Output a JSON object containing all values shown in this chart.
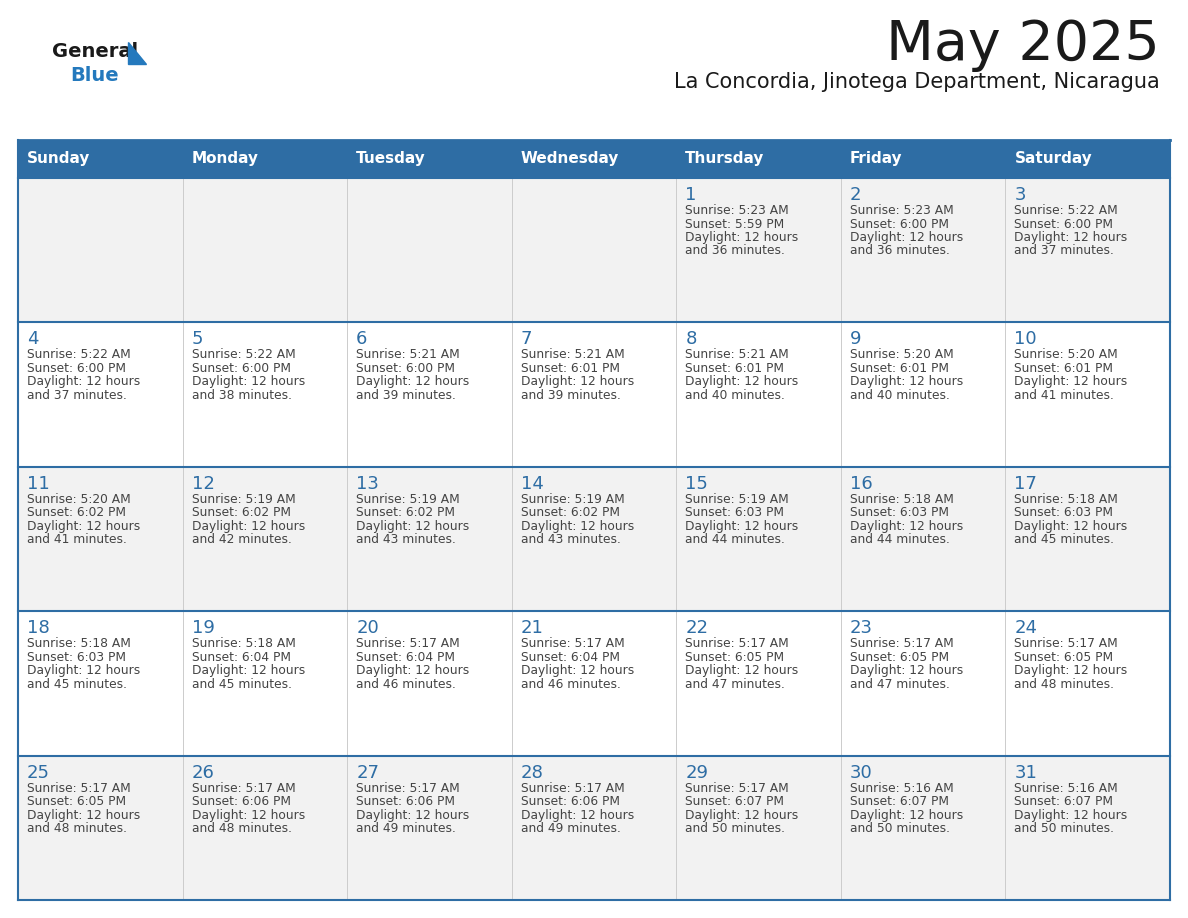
{
  "title": "May 2025",
  "subtitle": "La Concordia, Jinotega Department, Nicaragua",
  "days_of_week": [
    "Sunday",
    "Monday",
    "Tuesday",
    "Wednesday",
    "Thursday",
    "Friday",
    "Saturday"
  ],
  "header_bg": "#2E6DA4",
  "header_text": "#FFFFFF",
  "row_bg_light": "#F2F2F2",
  "row_bg_white": "#FFFFFF",
  "day_number_color": "#2E6DA4",
  "text_color": "#444444",
  "border_color": "#2E6DA4",
  "col_line_color": "#CCCCCC",
  "calendar_data": [
    [
      null,
      null,
      null,
      null,
      {
        "day": 1,
        "sunrise": "5:23 AM",
        "sunset": "5:59 PM",
        "daylight": "12 hours and 36 minutes."
      },
      {
        "day": 2,
        "sunrise": "5:23 AM",
        "sunset": "6:00 PM",
        "daylight": "12 hours and 36 minutes."
      },
      {
        "day": 3,
        "sunrise": "5:22 AM",
        "sunset": "6:00 PM",
        "daylight": "12 hours and 37 minutes."
      }
    ],
    [
      {
        "day": 4,
        "sunrise": "5:22 AM",
        "sunset": "6:00 PM",
        "daylight": "12 hours and 37 minutes."
      },
      {
        "day": 5,
        "sunrise": "5:22 AM",
        "sunset": "6:00 PM",
        "daylight": "12 hours and 38 minutes."
      },
      {
        "day": 6,
        "sunrise": "5:21 AM",
        "sunset": "6:00 PM",
        "daylight": "12 hours and 39 minutes."
      },
      {
        "day": 7,
        "sunrise": "5:21 AM",
        "sunset": "6:01 PM",
        "daylight": "12 hours and 39 minutes."
      },
      {
        "day": 8,
        "sunrise": "5:21 AM",
        "sunset": "6:01 PM",
        "daylight": "12 hours and 40 minutes."
      },
      {
        "day": 9,
        "sunrise": "5:20 AM",
        "sunset": "6:01 PM",
        "daylight": "12 hours and 40 minutes."
      },
      {
        "day": 10,
        "sunrise": "5:20 AM",
        "sunset": "6:01 PM",
        "daylight": "12 hours and 41 minutes."
      }
    ],
    [
      {
        "day": 11,
        "sunrise": "5:20 AM",
        "sunset": "6:02 PM",
        "daylight": "12 hours and 41 minutes."
      },
      {
        "day": 12,
        "sunrise": "5:19 AM",
        "sunset": "6:02 PM",
        "daylight": "12 hours and 42 minutes."
      },
      {
        "day": 13,
        "sunrise": "5:19 AM",
        "sunset": "6:02 PM",
        "daylight": "12 hours and 43 minutes."
      },
      {
        "day": 14,
        "sunrise": "5:19 AM",
        "sunset": "6:02 PM",
        "daylight": "12 hours and 43 minutes."
      },
      {
        "day": 15,
        "sunrise": "5:19 AM",
        "sunset": "6:03 PM",
        "daylight": "12 hours and 44 minutes."
      },
      {
        "day": 16,
        "sunrise": "5:18 AM",
        "sunset": "6:03 PM",
        "daylight": "12 hours and 44 minutes."
      },
      {
        "day": 17,
        "sunrise": "5:18 AM",
        "sunset": "6:03 PM",
        "daylight": "12 hours and 45 minutes."
      }
    ],
    [
      {
        "day": 18,
        "sunrise": "5:18 AM",
        "sunset": "6:03 PM",
        "daylight": "12 hours and 45 minutes."
      },
      {
        "day": 19,
        "sunrise": "5:18 AM",
        "sunset": "6:04 PM",
        "daylight": "12 hours and 45 minutes."
      },
      {
        "day": 20,
        "sunrise": "5:17 AM",
        "sunset": "6:04 PM",
        "daylight": "12 hours and 46 minutes."
      },
      {
        "day": 21,
        "sunrise": "5:17 AM",
        "sunset": "6:04 PM",
        "daylight": "12 hours and 46 minutes."
      },
      {
        "day": 22,
        "sunrise": "5:17 AM",
        "sunset": "6:05 PM",
        "daylight": "12 hours and 47 minutes."
      },
      {
        "day": 23,
        "sunrise": "5:17 AM",
        "sunset": "6:05 PM",
        "daylight": "12 hours and 47 minutes."
      },
      {
        "day": 24,
        "sunrise": "5:17 AM",
        "sunset": "6:05 PM",
        "daylight": "12 hours and 48 minutes."
      }
    ],
    [
      {
        "day": 25,
        "sunrise": "5:17 AM",
        "sunset": "6:05 PM",
        "daylight": "12 hours and 48 minutes."
      },
      {
        "day": 26,
        "sunrise": "5:17 AM",
        "sunset": "6:06 PM",
        "daylight": "12 hours and 48 minutes."
      },
      {
        "day": 27,
        "sunrise": "5:17 AM",
        "sunset": "6:06 PM",
        "daylight": "12 hours and 49 minutes."
      },
      {
        "day": 28,
        "sunrise": "5:17 AM",
        "sunset": "6:06 PM",
        "daylight": "12 hours and 49 minutes."
      },
      {
        "day": 29,
        "sunrise": "5:17 AM",
        "sunset": "6:07 PM",
        "daylight": "12 hours and 50 minutes."
      },
      {
        "day": 30,
        "sunrise": "5:16 AM",
        "sunset": "6:07 PM",
        "daylight": "12 hours and 50 minutes."
      },
      {
        "day": 31,
        "sunrise": "5:16 AM",
        "sunset": "6:07 PM",
        "daylight": "12 hours and 50 minutes."
      }
    ]
  ],
  "logo_general_color": "#1a1a1a",
  "logo_blue_color": "#2479BD",
  "logo_triangle_color": "#2479BD",
  "title_fontsize": 40,
  "subtitle_fontsize": 15,
  "header_fontsize": 11,
  "day_num_fontsize": 13,
  "cell_text_fontsize": 8.8
}
